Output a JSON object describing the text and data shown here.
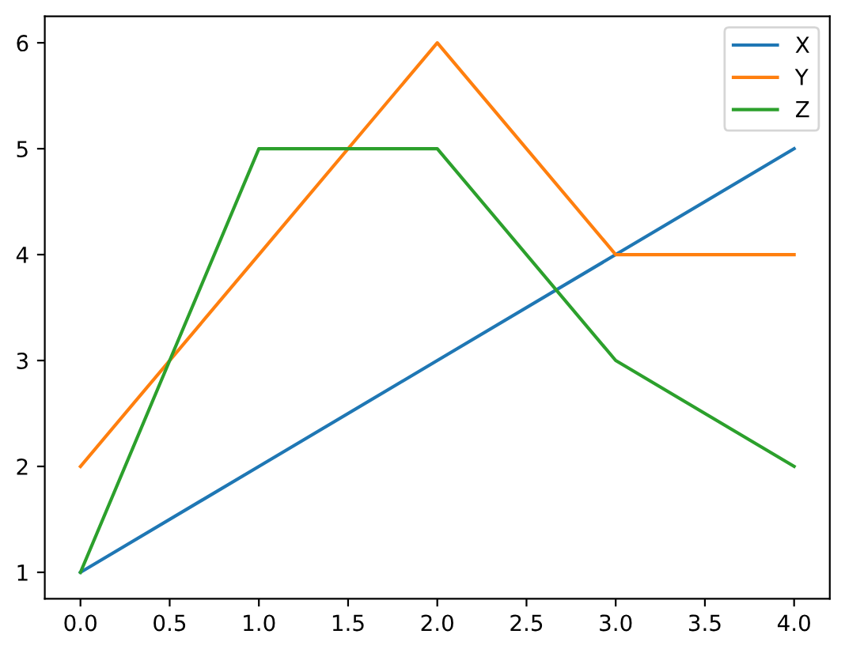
{
  "chart_data": {
    "type": "line",
    "x": [
      0,
      1,
      2,
      3,
      4
    ],
    "series": [
      {
        "name": "X",
        "color": "#1f77b4",
        "values": [
          1,
          2,
          3,
          4,
          5
        ]
      },
      {
        "name": "Y",
        "color": "#ff7f0e",
        "values": [
          2,
          4,
          6,
          4,
          4
        ]
      },
      {
        "name": "Z",
        "color": "#2ca02c",
        "values": [
          1,
          5,
          5,
          3,
          2
        ]
      }
    ],
    "xlim": [
      -0.2,
      4.2
    ],
    "ylim": [
      0.75,
      6.25
    ],
    "xticks": [
      {
        "value": 0,
        "label": "0.0"
      },
      {
        "value": 0.5,
        "label": "0.5"
      },
      {
        "value": 1,
        "label": "1.0"
      },
      {
        "value": 1.5,
        "label": "1.5"
      },
      {
        "value": 2,
        "label": "2.0"
      },
      {
        "value": 2.5,
        "label": "2.5"
      },
      {
        "value": 3,
        "label": "3.0"
      },
      {
        "value": 3.5,
        "label": "3.5"
      },
      {
        "value": 4,
        "label": "4.0"
      }
    ],
    "yticks": [
      1,
      2,
      3,
      4,
      5,
      6
    ],
    "legend": "top right",
    "grid": false,
    "marker": "none",
    "line_style": "solid"
  }
}
